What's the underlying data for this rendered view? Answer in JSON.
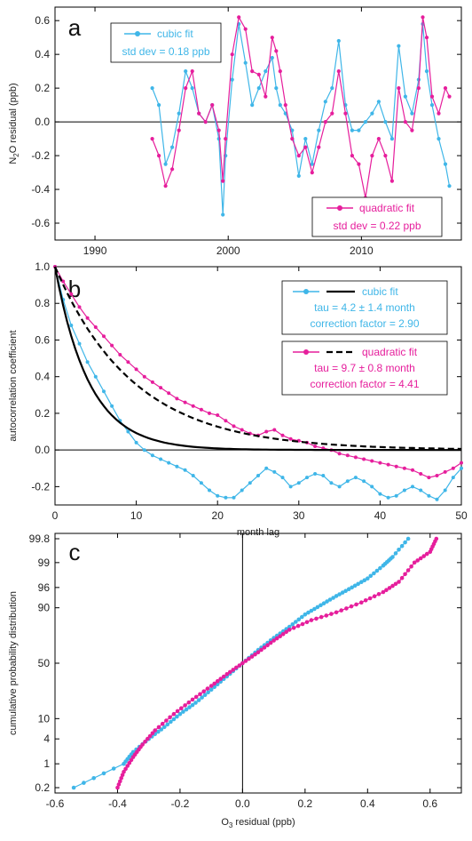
{
  "colors": {
    "cubic": "#3fb6e8",
    "quadratic": "#e61e9c",
    "axis": "#000000",
    "fit_line": "#000000"
  },
  "chart_data": [
    {
      "panel": "a",
      "type": "line",
      "ylabel": "N2O residual (ppb)",
      "ylabel_main": "N",
      "ylabel_sub": "2",
      "ylabel_rest": "O residual (ppb)",
      "xlim": [
        1987,
        2017.5
      ],
      "ylim": [
        -0.7,
        0.68
      ],
      "xticks": [
        1990,
        2000,
        2010
      ],
      "xtick_labels": [
        "1990",
        "2000",
        "2010"
      ],
      "yticks": [
        -0.6,
        -0.4,
        -0.2,
        0.0,
        0.2,
        0.4,
        0.6
      ],
      "ytick_labels": [
        "-0.6",
        "-0.4",
        "-0.2",
        "0.0",
        "0.2",
        "0.4",
        "0.6"
      ],
      "zero_line": true,
      "legend": [
        {
          "label": "cubic fit",
          "stat": "std dev = 0.18 ppb",
          "placement": "top-left"
        },
        {
          "label": "quadratic fit",
          "stat": "std dev = 0.22 ppb",
          "placement": "bottom-right"
        }
      ],
      "series": [
        {
          "name": "cubic fit",
          "x": [
            1994.3,
            1994.8,
            1995.3,
            1995.8,
            1996.3,
            1996.8,
            1997.3,
            1997.8,
            1998.3,
            1998.8,
            1999.3,
            1999.6,
            1999.8,
            2000.3,
            2000.8,
            2001.3,
            2001.8,
            2002.3,
            2002.8,
            2003.3,
            2003.6,
            2003.9,
            2004.3,
            2004.8,
            2005.3,
            2005.8,
            2006.3,
            2006.8,
            2007.3,
            2007.8,
            2008.3,
            2008.8,
            2009.3,
            2009.8,
            2010.3,
            2010.8,
            2011.3,
            2011.8,
            2012.3,
            2012.8,
            2013.3,
            2013.8,
            2014.3,
            2014.6,
            2014.9,
            2015.3,
            2015.8,
            2016.3,
            2016.6
          ],
          "y": [
            0.2,
            0.1,
            -0.25,
            -0.15,
            0.05,
            0.3,
            0.2,
            0.05,
            0.0,
            0.1,
            -0.1,
            -0.55,
            -0.2,
            0.25,
            0.58,
            0.35,
            0.1,
            0.2,
            0.3,
            0.38,
            0.2,
            0.1,
            0.05,
            -0.05,
            -0.32,
            -0.1,
            -0.25,
            -0.05,
            0.12,
            0.2,
            0.48,
            0.1,
            -0.05,
            -0.05,
            0.0,
            0.05,
            0.12,
            0.0,
            -0.1,
            0.45,
            0.15,
            0.05,
            0.25,
            0.58,
            0.3,
            0.1,
            -0.1,
            -0.25,
            -0.38
          ]
        },
        {
          "name": "quadratic fit",
          "x": [
            1994.3,
            1994.8,
            1995.3,
            1995.8,
            1996.3,
            1996.8,
            1997.3,
            1997.8,
            1998.3,
            1998.8,
            1999.3,
            1999.6,
            1999.8,
            2000.3,
            2000.8,
            2001.3,
            2001.8,
            2002.3,
            2002.8,
            2003.3,
            2003.6,
            2003.9,
            2004.3,
            2004.8,
            2005.3,
            2005.8,
            2006.3,
            2006.8,
            2007.3,
            2007.8,
            2008.3,
            2008.8,
            2009.3,
            2009.8,
            2010.3,
            2010.8,
            2011.3,
            2011.8,
            2012.3,
            2012.8,
            2013.3,
            2013.8,
            2014.3,
            2014.6,
            2014.9,
            2015.3,
            2015.8,
            2016.3,
            2016.6
          ],
          "y": [
            -0.1,
            -0.2,
            -0.38,
            -0.28,
            -0.05,
            0.2,
            0.3,
            0.05,
            0.0,
            0.1,
            -0.05,
            -0.35,
            -0.1,
            0.4,
            0.62,
            0.55,
            0.3,
            0.28,
            0.15,
            0.5,
            0.42,
            0.3,
            0.1,
            -0.1,
            -0.2,
            -0.15,
            -0.3,
            -0.15,
            0.0,
            0.05,
            0.3,
            0.05,
            -0.2,
            -0.25,
            -0.45,
            -0.2,
            -0.1,
            -0.2,
            -0.35,
            0.2,
            0.0,
            -0.05,
            0.2,
            0.62,
            0.5,
            0.15,
            0.05,
            0.2,
            0.15
          ]
        }
      ]
    },
    {
      "panel": "b",
      "type": "line",
      "xlabel": "month lag",
      "ylabel": "autocorrelation coefficient",
      "xlim": [
        0,
        50
      ],
      "ylim": [
        -0.3,
        1.0
      ],
      "xticks": [
        0,
        10,
        20,
        30,
        40,
        50
      ],
      "xtick_labels": [
        "0",
        "10",
        "20",
        "30",
        "40",
        "50"
      ],
      "yticks": [
        -0.2,
        0.0,
        0.2,
        0.4,
        0.6,
        0.8,
        1.0
      ],
      "ytick_labels": [
        "-0.2",
        "0.0",
        "0.2",
        "0.4",
        "0.6",
        "0.8",
        "1.0"
      ],
      "zero_line": true,
      "legend": [
        {
          "label": "cubic fit",
          "lines": [
            "tau = 4.2  ± 1.4 month",
            "correction factor = 2.90"
          ],
          "placement": "top-right"
        },
        {
          "label": "quadratic fit",
          "lines": [
            "tau = 9.7 ± 0.8 month",
            "correction factor = 4.41"
          ],
          "placement": "right"
        }
      ],
      "series": [
        {
          "name": "cubic fit",
          "style": "markers",
          "x": [
            0,
            1,
            2,
            3,
            4,
            5,
            6,
            7,
            8,
            9,
            10,
            11,
            12,
            13,
            14,
            15,
            16,
            17,
            18,
            19,
            20,
            21,
            22,
            23,
            24,
            25,
            26,
            27,
            28,
            29,
            30,
            31,
            32,
            33,
            34,
            35,
            36,
            37,
            38,
            39,
            40,
            41,
            42,
            43,
            44,
            45,
            46,
            47,
            48,
            49,
            50
          ],
          "y": [
            1.0,
            0.82,
            0.68,
            0.58,
            0.48,
            0.4,
            0.32,
            0.24,
            0.16,
            0.1,
            0.04,
            0.0,
            -0.03,
            -0.05,
            -0.07,
            -0.09,
            -0.11,
            -0.14,
            -0.18,
            -0.22,
            -0.25,
            -0.26,
            -0.26,
            -0.22,
            -0.18,
            -0.14,
            -0.1,
            -0.12,
            -0.15,
            -0.2,
            -0.18,
            -0.15,
            -0.13,
            -0.14,
            -0.18,
            -0.2,
            -0.17,
            -0.15,
            -0.17,
            -0.2,
            -0.24,
            -0.26,
            -0.25,
            -0.22,
            -0.2,
            -0.22,
            -0.25,
            -0.27,
            -0.22,
            -0.15,
            -0.1
          ]
        },
        {
          "name": "quadratic fit",
          "style": "markers",
          "x": [
            0,
            1,
            2,
            3,
            4,
            5,
            6,
            7,
            8,
            9,
            10,
            11,
            12,
            13,
            14,
            15,
            16,
            17,
            18,
            19,
            20,
            21,
            22,
            23,
            24,
            25,
            26,
            27,
            28,
            29,
            30,
            31,
            32,
            33,
            34,
            35,
            36,
            37,
            38,
            39,
            40,
            41,
            42,
            43,
            44,
            45,
            46,
            47,
            48,
            49,
            50
          ],
          "y": [
            1.0,
            0.92,
            0.85,
            0.78,
            0.72,
            0.67,
            0.62,
            0.57,
            0.52,
            0.48,
            0.44,
            0.4,
            0.37,
            0.34,
            0.31,
            0.28,
            0.26,
            0.24,
            0.22,
            0.2,
            0.19,
            0.16,
            0.13,
            0.11,
            0.09,
            0.08,
            0.1,
            0.11,
            0.08,
            0.06,
            0.05,
            0.04,
            0.02,
            0.01,
            0.0,
            -0.02,
            -0.03,
            -0.04,
            -0.05,
            -0.06,
            -0.07,
            -0.08,
            -0.09,
            -0.1,
            -0.11,
            -0.13,
            -0.15,
            -0.14,
            -0.12,
            -0.1,
            -0.07
          ]
        },
        {
          "name": "cubic fit",
          "style": "solid",
          "tau": 4.2
        },
        {
          "name": "quadratic fit",
          "style": "dashed",
          "tau": 9.7
        }
      ]
    },
    {
      "panel": "c",
      "type": "scatter",
      "xlabel": "O3 residual (ppb)",
      "xlabel_main": "O",
      "xlabel_sub": "3",
      "xlabel_rest": " residual (ppb)",
      "ylabel": "cumulative probability distribution",
      "xlim": [
        -0.6,
        0.7
      ],
      "ylim_percent": [
        0.2,
        99.8
      ],
      "scale": "probability",
      "xticks": [
        -0.6,
        -0.4,
        -0.2,
        0.0,
        0.2,
        0.4,
        0.6
      ],
      "xtick_labels": [
        "-0.6",
        "-0.4",
        "-0.2",
        "0.0",
        "0.2",
        "0.4",
        "0.6"
      ],
      "yticks": [
        0.2,
        1,
        4,
        10,
        50,
        90,
        96,
        99,
        99.8
      ],
      "ytick_labels": [
        "0.2",
        "1",
        "4",
        "10",
        "50",
        "90",
        "96",
        "99",
        "99.8"
      ],
      "zero_line": true,
      "series": [
        {
          "name": "cubic fit",
          "x": [
            -0.54,
            -0.38,
            -0.35,
            -0.3,
            -0.25,
            -0.2,
            -0.15,
            -0.1,
            -0.05,
            0.0,
            0.05,
            0.1,
            0.15,
            0.2,
            0.25,
            0.3,
            0.35,
            0.4,
            0.45,
            0.48,
            0.53
          ],
          "p": [
            0.2,
            1.0,
            2.0,
            4.0,
            7.0,
            12.0,
            18.0,
            27.0,
            38.0,
            50.0,
            62.0,
            72.0,
            80.0,
            87.0,
            91.0,
            94.0,
            96.0,
            97.5,
            98.8,
            99.3,
            99.8
          ]
        },
        {
          "name": "quadratic fit",
          "x": [
            -0.4,
            -0.38,
            -0.35,
            -0.32,
            -0.28,
            -0.22,
            -0.16,
            -0.1,
            -0.05,
            0.0,
            0.05,
            0.1,
            0.15,
            0.22,
            0.3,
            0.38,
            0.45,
            0.5,
            0.55,
            0.6,
            0.62
          ],
          "p": [
            0.2,
            0.6,
            1.5,
            3.0,
            6.0,
            12.0,
            20.0,
            30.0,
            40.0,
            50.0,
            60.0,
            70.0,
            78.0,
            84.0,
            88.0,
            92.0,
            95.0,
            97.0,
            99.0,
            99.5,
            99.8
          ]
        }
      ]
    }
  ]
}
